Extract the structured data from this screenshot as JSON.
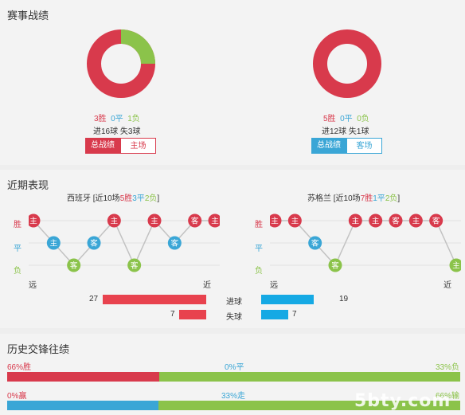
{
  "record": {
    "title": "赛事战绩",
    "left": {
      "wins": "3胜",
      "draws": "0平",
      "losses": "1负",
      "goals": "进16球 失3球",
      "tab_all": "总战绩",
      "tab_home": "主场",
      "win_fraction": 0.75,
      "loss_fraction": 0.25
    },
    "right": {
      "wins": "5胜",
      "draws": "0平",
      "losses": "0负",
      "goals": "进12球 失1球",
      "tab_all": "总战绩",
      "tab_away": "客场",
      "win_fraction": 1.0,
      "loss_fraction": 0.0
    },
    "colors": {
      "win": "#d83a4c",
      "draw": "#3aa6d6",
      "loss": "#8bc34a"
    }
  },
  "recent": {
    "title": "近期表现",
    "left": {
      "team": "西班牙",
      "summary_prefix": "[近10场",
      "wins": "5胜",
      "draws": "3平",
      "losses": "2负",
      "summary_suffix": "]",
      "results": [
        {
          "r": "W",
          "v": "主"
        },
        {
          "r": "D",
          "v": "主"
        },
        {
          "r": "L",
          "v": "客"
        },
        {
          "r": "D",
          "v": "客"
        },
        {
          "r": "W",
          "v": "主"
        },
        {
          "r": "L",
          "v": "客"
        },
        {
          "r": "W",
          "v": "主"
        },
        {
          "r": "D",
          "v": "客"
        },
        {
          "r": "W",
          "v": "客"
        },
        {
          "r": "W",
          "v": "主"
        }
      ],
      "goals_for": 27,
      "goals_against": 7
    },
    "right": {
      "team": "苏格兰",
      "summary_prefix": "[近10场",
      "wins": "7胜",
      "draws": "1平",
      "losses": "2负",
      "summary_suffix": "]",
      "results": [
        {
          "r": "W",
          "v": "主"
        },
        {
          "r": "W",
          "v": "主"
        },
        {
          "r": "D",
          "v": "客"
        },
        {
          "r": "L",
          "v": "客"
        },
        {
          "r": "W",
          "v": "主"
        },
        {
          "r": "W",
          "v": "主"
        },
        {
          "r": "W",
          "v": "客"
        },
        {
          "r": "W",
          "v": "主"
        },
        {
          "r": "W",
          "v": "客"
        },
        {
          "r": "L",
          "v": "主"
        }
      ],
      "goals_for": 19,
      "goals_against": 7
    },
    "axis": {
      "win": "胜",
      "draw": "平",
      "loss": "负",
      "far": "远",
      "near": "近"
    },
    "goals_label": "进球",
    "conceded_label": "失球"
  },
  "history": {
    "title": "历史交锋往绩",
    "row1": {
      "left": "66%胜",
      "mid": "0%平",
      "right": "33%负",
      "left_frac": 0.66,
      "right_frac": 0.33
    },
    "row2": {
      "left": "0%赢",
      "mid": "33%走",
      "right": "66%输",
      "left_frac": 0.0,
      "mid_frac": 0.33,
      "right_frac": 0.66
    }
  },
  "watermark": "5bty.com"
}
